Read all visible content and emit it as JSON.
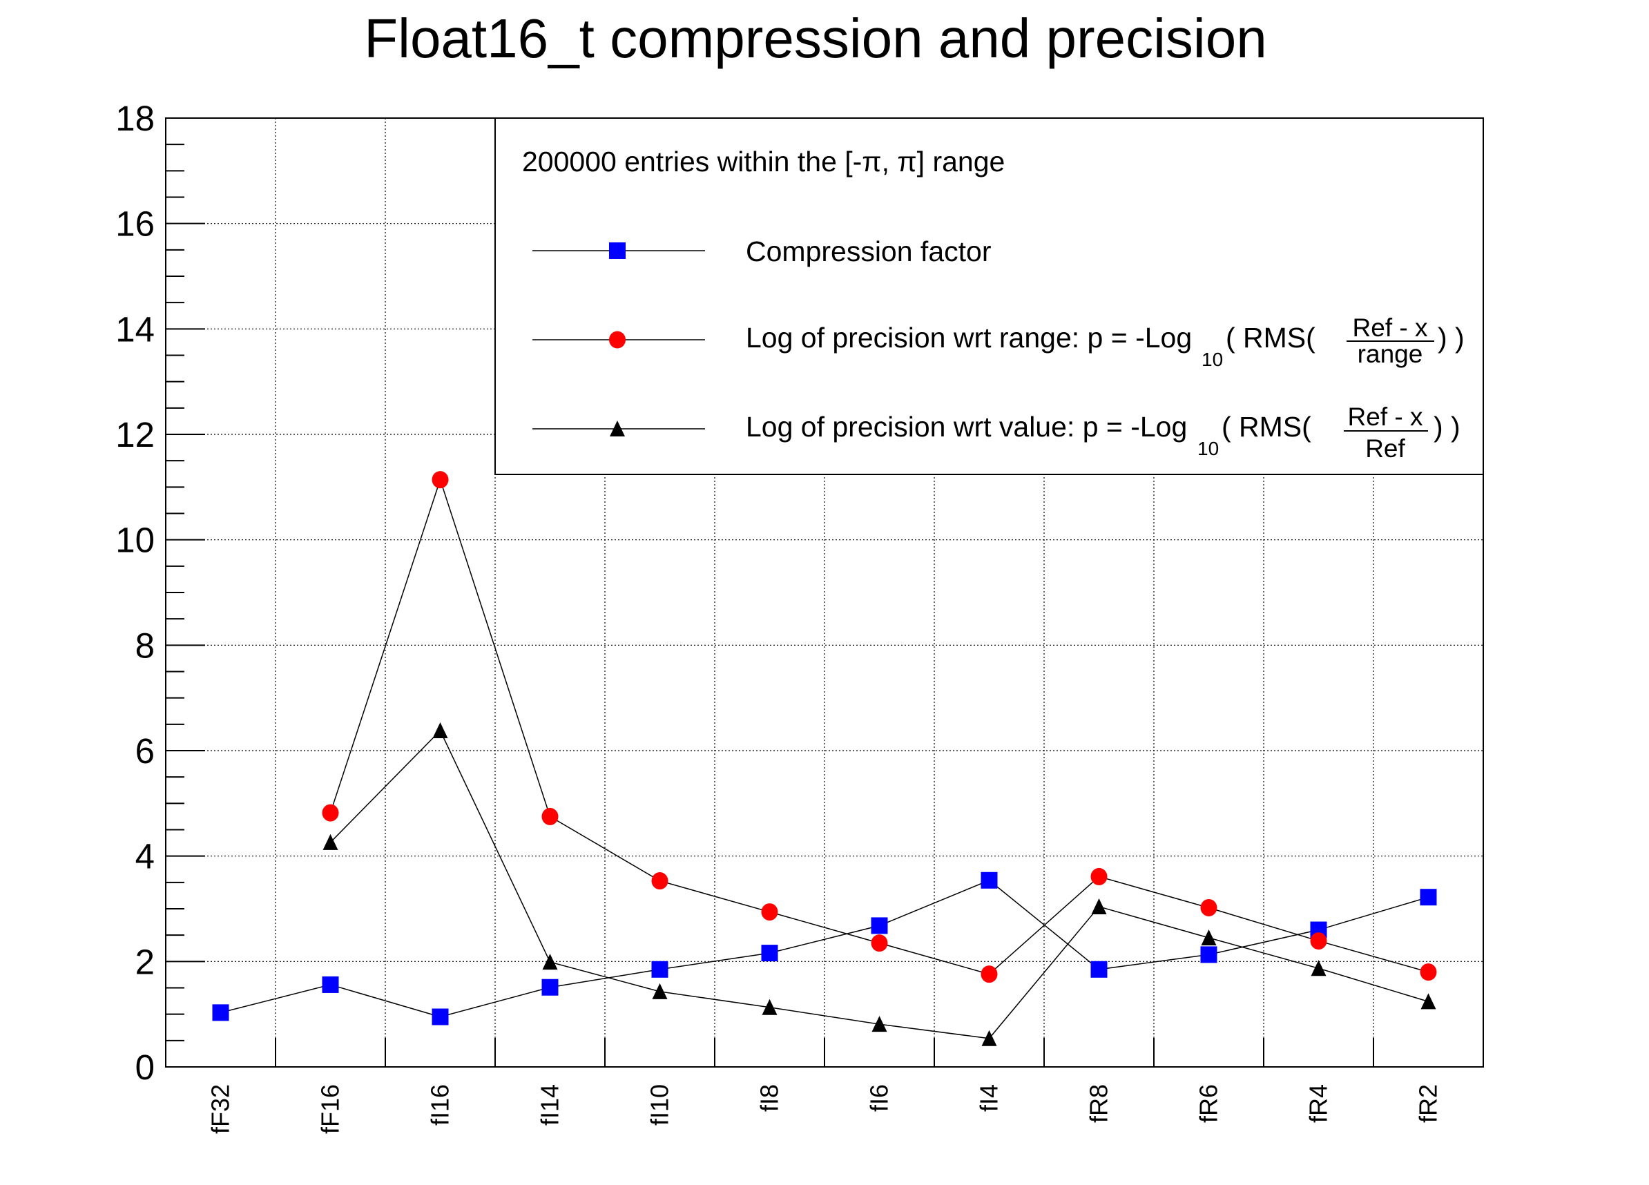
{
  "chart_data": {
    "type": "line",
    "title": "Float16_t compression and precision",
    "xlabel": "",
    "ylabel": "",
    "ylim": [
      0,
      18
    ],
    "yticks": [
      "0",
      "2",
      "4",
      "6",
      "8",
      "10",
      "12",
      "14",
      "16",
      "18"
    ],
    "grid": true,
    "categories": [
      "fF32",
      "fF16",
      "fI16",
      "fI14",
      "fI10",
      "fI8",
      "fI6",
      "fI4",
      "fR8",
      "fR6",
      "fR4",
      "fR2"
    ],
    "legend": {
      "placement": "top-right",
      "header": "200000 entries within the [-π,   π] range",
      "entries": [
        {
          "series": 0,
          "label": "Compression factor"
        },
        {
          "series": 1,
          "label_main": "Log of precision wrt range: p = -Log",
          "sub": "10",
          "label_mid": "( RMS(",
          "frac_num": "Ref - x",
          "frac_den": "range",
          "label_end": ") )"
        },
        {
          "series": 2,
          "label_main": "Log of precision wrt value: p = -Log",
          "sub": "10",
          "label_mid": "( RMS(",
          "frac_num": "Ref - x",
          "frac_den": "Ref",
          "label_end": ") )"
        }
      ]
    },
    "series": [
      {
        "name": "Compression factor",
        "marker": "square",
        "color": "#0000ff",
        "values": [
          1.03,
          1.56,
          0.95,
          1.51,
          1.85,
          2.16,
          2.68,
          3.54,
          1.85,
          2.13,
          2.6,
          3.22
        ]
      },
      {
        "name": "Log of precision wrt range",
        "marker": "circle",
        "color": "#ff0000",
        "values": [
          null,
          4.82,
          11.14,
          4.75,
          3.53,
          2.94,
          2.35,
          1.76,
          3.61,
          3.02,
          2.39,
          1.8
        ]
      },
      {
        "name": "Log of precision wrt value",
        "marker": "triangle",
        "color": "#000000",
        "values": [
          null,
          4.26,
          6.38,
          1.99,
          1.43,
          1.13,
          0.81,
          0.54,
          3.04,
          2.45,
          1.87,
          1.24
        ]
      }
    ]
  }
}
